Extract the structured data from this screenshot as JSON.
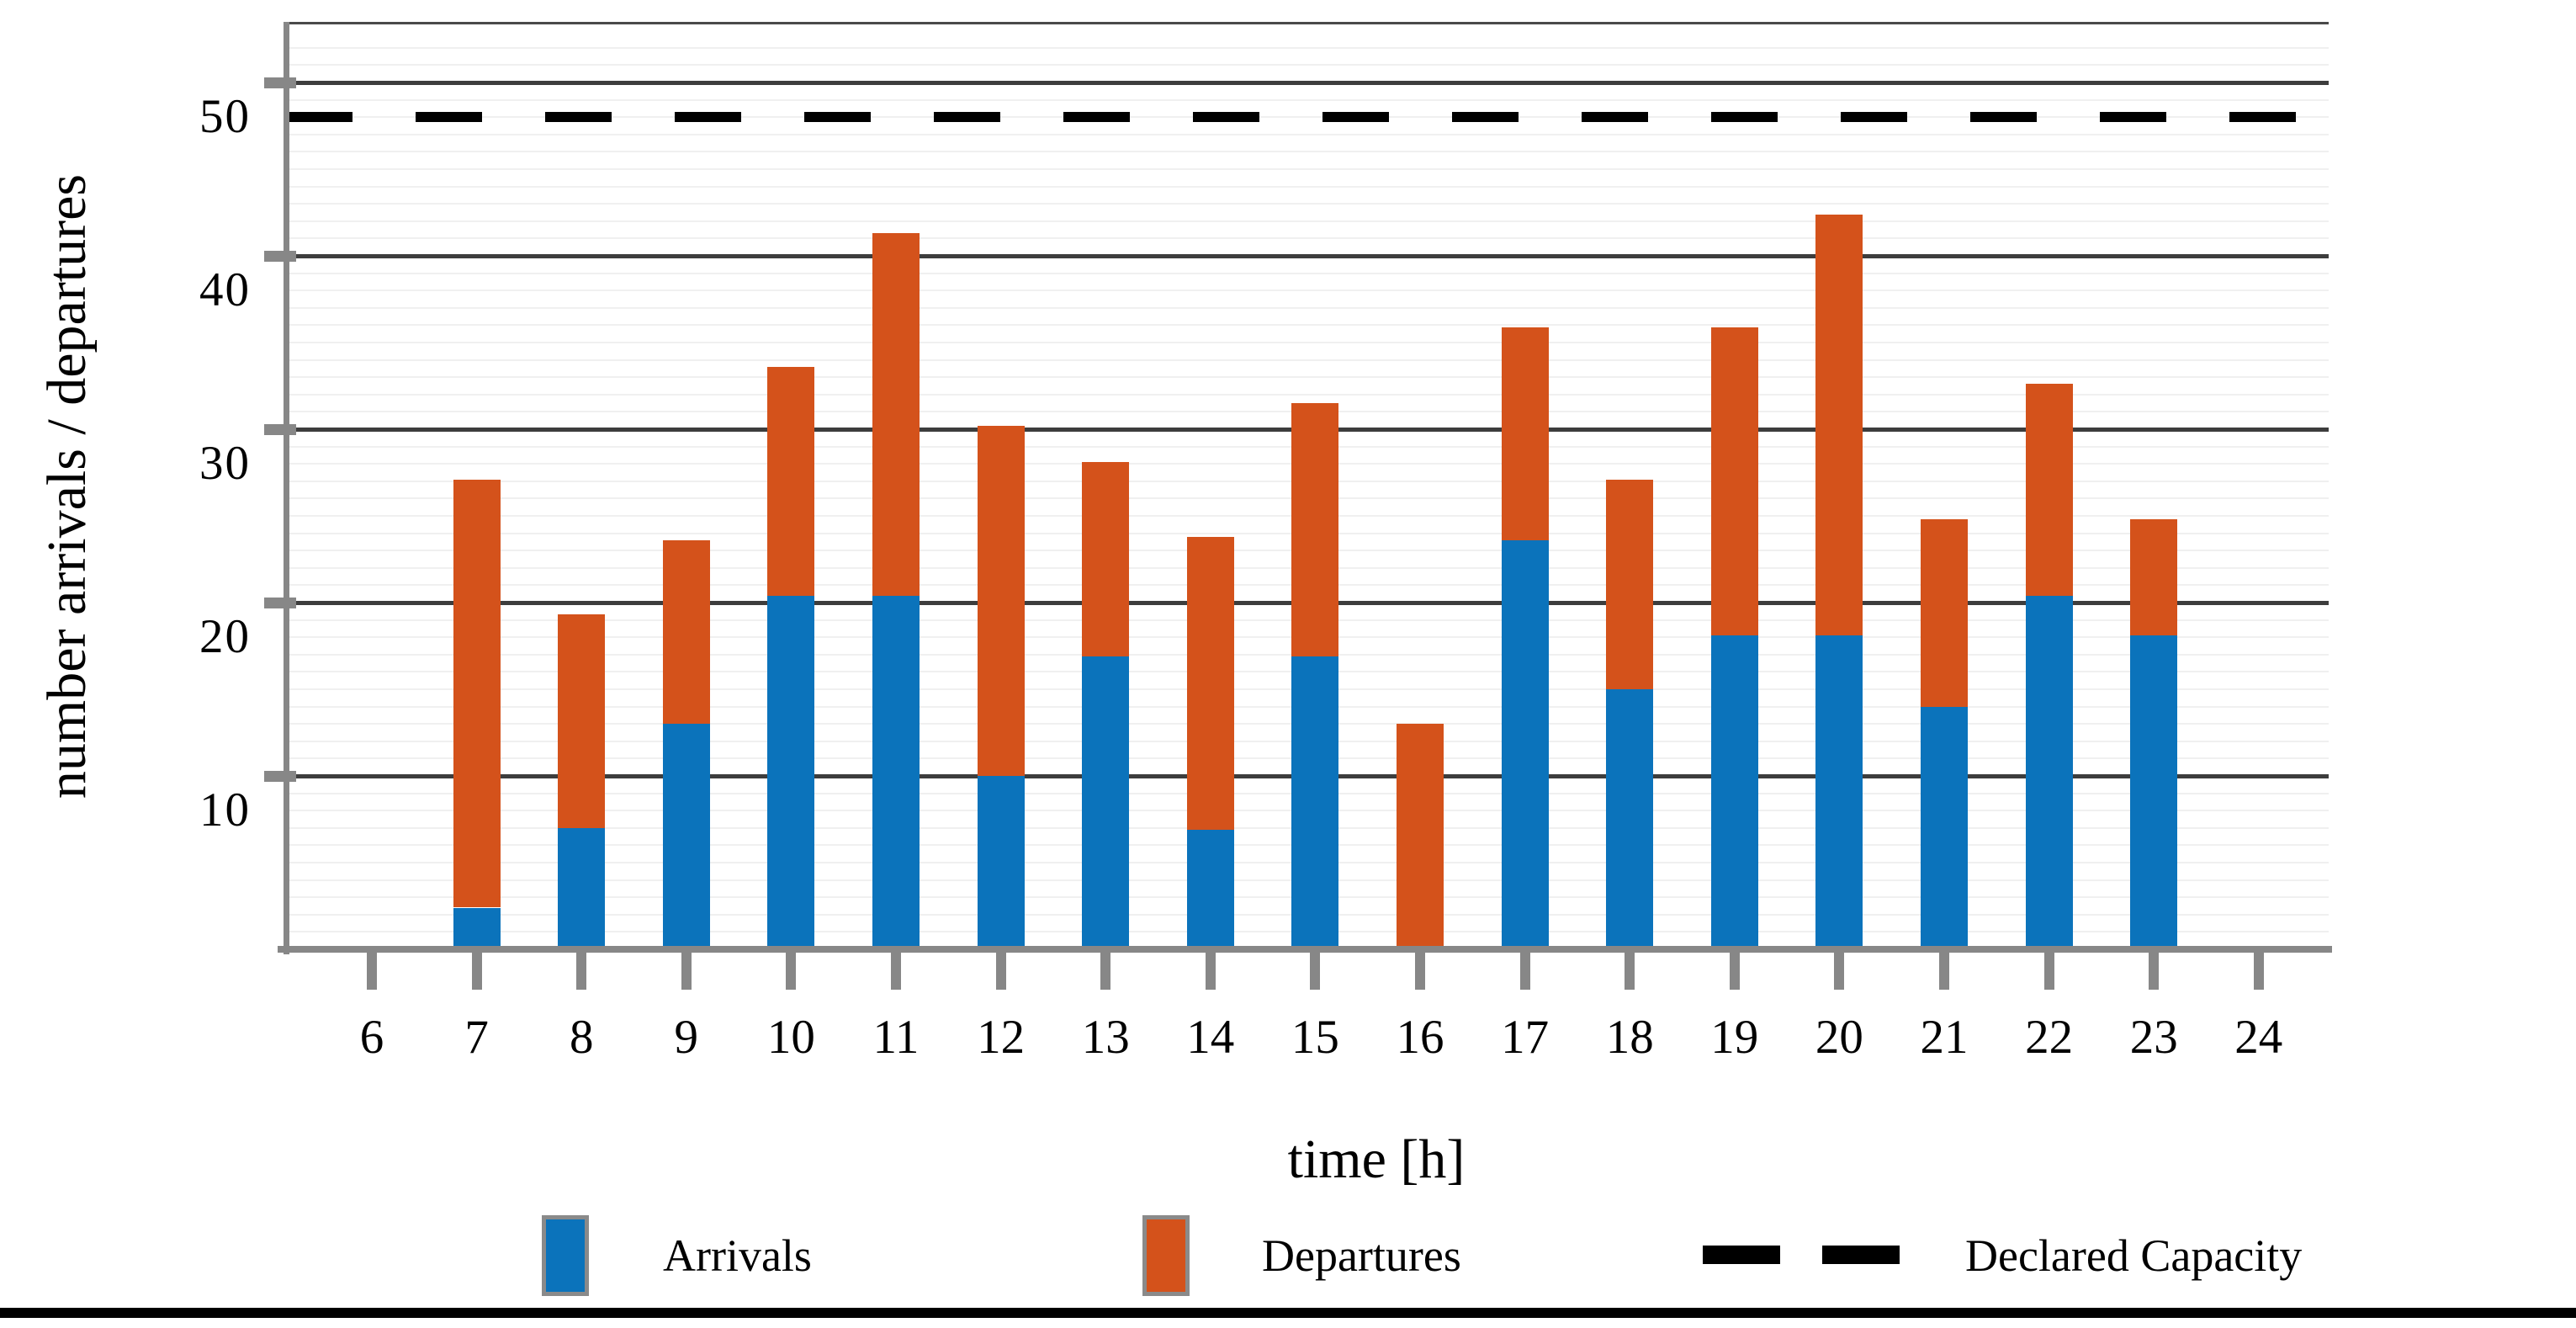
{
  "figure": {
    "y_axis_label": "number arrivals / departures",
    "x_axis_label": "time [h]"
  },
  "legend": {
    "arrivals_label": "Arrivals",
    "departures_label": "Departures",
    "capacity_label": "Declared Capacity"
  },
  "colors": {
    "arrivals": "#0b73bb",
    "departures": "#d4521b",
    "capacity_line": "#000000",
    "major_grid": "#3d3d3d",
    "minor_grid": "#f0f0f0",
    "axis_gray": "#878787"
  },
  "chart_data": {
    "type": "bar",
    "subtype": "stacked",
    "title": "",
    "xlabel": "time [h]",
    "ylabel": "number arrivals / departures",
    "x": [
      6,
      7,
      8,
      9,
      10,
      11,
      12,
      13,
      14,
      15,
      16,
      17,
      18,
      19,
      20,
      21,
      22,
      23,
      24
    ],
    "series": [
      {
        "name": "Arrivals",
        "color": "#0b73bb",
        "values": [
          0,
          2.4,
          7.0,
          13.0,
          20.4,
          20.4,
          10.0,
          16.9,
          6.9,
          16.9,
          0,
          23.6,
          15.0,
          18.1,
          18.1,
          14.0,
          20.4,
          18.1,
          0
        ]
      },
      {
        "name": "Departures",
        "color": "#d4521b",
        "values": [
          0,
          24.7,
          12.3,
          10.6,
          13.2,
          20.9,
          20.2,
          11.2,
          16.9,
          14.6,
          13.0,
          12.3,
          12.1,
          17.8,
          24.3,
          10.8,
          12.2,
          6.7,
          0
        ]
      }
    ],
    "stacked_totals": [
      0,
      27.1,
      19.3,
      23.6,
      33.6,
      41.3,
      30.2,
      28.1,
      23.8,
      31.5,
      13.0,
      35.9,
      27.1,
      35.9,
      42.4,
      24.8,
      32.6,
      24.8,
      0
    ],
    "capacity": {
      "name": "Declared Capacity",
      "value": 48,
      "style": "dashed",
      "color": "#000000"
    },
    "y_ticks": [
      10,
      20,
      30,
      40,
      50
    ],
    "x_ticks": [
      6,
      7,
      8,
      9,
      10,
      11,
      12,
      13,
      14,
      15,
      16,
      17,
      18,
      19,
      20,
      21,
      22,
      23,
      24
    ],
    "ylim": [
      0,
      53.5
    ],
    "grid": {
      "major": "horizontal every 10",
      "minor": "horizontal every 1"
    },
    "legend_position": "bottom"
  }
}
